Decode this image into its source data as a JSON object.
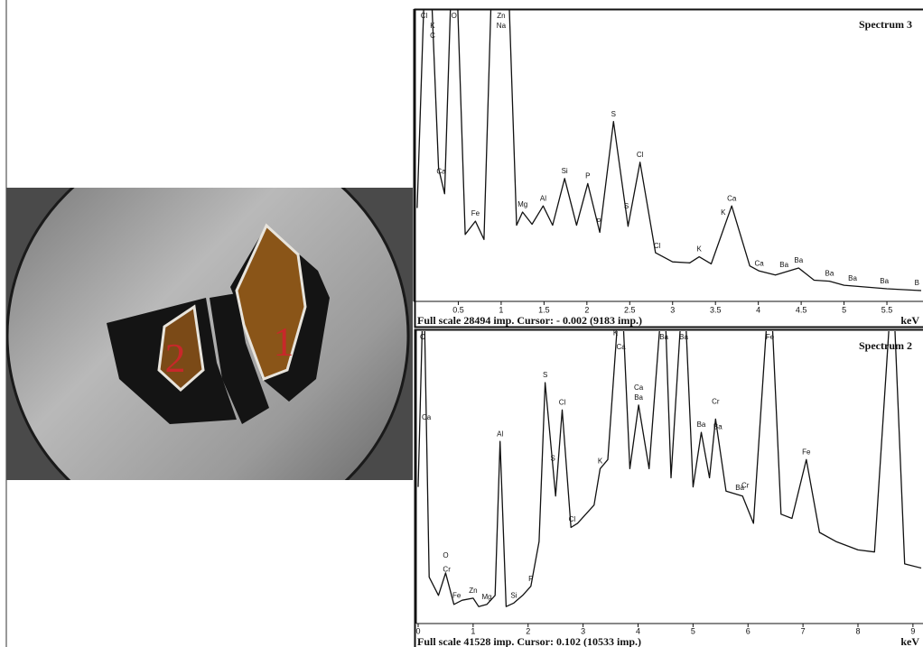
{
  "photo": {
    "labels": [
      "2",
      "1"
    ]
  },
  "chart_data": [
    {
      "type": "line",
      "title": "Spectrum 3",
      "x_label": "keV",
      "footer": "Full scale 28494 imp. Cursor: - 0.002 (9183 imp.)",
      "xlim": [
        0,
        5.9
      ],
      "ylim": [
        0,
        28494
      ],
      "xticks": [
        0.5,
        1,
        1.5,
        2,
        2.5,
        3,
        3.5,
        4,
        4.5,
        5,
        5.5
      ],
      "x": [
        0.02,
        0.14,
        0.27,
        0.34,
        0.45,
        0.58,
        0.7,
        0.8,
        0.92,
        1.05,
        1.18,
        1.25,
        1.36,
        1.49,
        1.6,
        1.74,
        1.88,
        2.01,
        2.15,
        2.31,
        2.48,
        2.62,
        2.8,
        3.0,
        3.2,
        3.31,
        3.45,
        3.69,
        3.9,
        4.01,
        4.2,
        4.47,
        4.65,
        4.83,
        5.0,
        5.5,
        5.9
      ],
      "values": [
        9100,
        40000,
        13000,
        10500,
        40000,
        6500,
        7800,
        6000,
        40000,
        40000,
        7400,
        8700,
        7500,
        9300,
        7400,
        12000,
        7400,
        11500,
        6700,
        17600,
        7300,
        13600,
        4700,
        3800,
        3700,
        4300,
        3600,
        9300,
        3400,
        2900,
        2500,
        3200,
        2000,
        1900,
        1500,
        1150,
        980
      ],
      "peak_labels": [
        {
          "text": "Cl",
          "x": 0.1
        },
        {
          "text": "K",
          "x": 0.2
        },
        {
          "text": "C",
          "x": 0.2
        },
        {
          "text": "Ca",
          "x": 0.3
        },
        {
          "text": "O",
          "x": 0.45
        },
        {
          "text": "Zn",
          "x": 1.0
        },
        {
          "text": "Na",
          "x": 1.0
        },
        {
          "text": "Fe",
          "x": 0.7
        },
        {
          "text": "Mg",
          "x": 1.25
        },
        {
          "text": "Al",
          "x": 1.49
        },
        {
          "text": "Si",
          "x": 1.74
        },
        {
          "text": "P",
          "x": 2.01
        },
        {
          "text": "P",
          "x": 2.14
        },
        {
          "text": "S",
          "x": 2.31
        },
        {
          "text": "S",
          "x": 2.46
        },
        {
          "text": "Cl",
          "x": 2.62
        },
        {
          "text": "Cl",
          "x": 2.82
        },
        {
          "text": "K",
          "x": 3.31
        },
        {
          "text": "K",
          "x": 3.59
        },
        {
          "text": "Ca",
          "x": 3.69
        },
        {
          "text": "Ca",
          "x": 4.01
        },
        {
          "text": "Ba",
          "x": 4.3
        },
        {
          "text": "Ba",
          "x": 4.47
        },
        {
          "text": "Ba",
          "x": 4.83
        },
        {
          "text": "Ba",
          "x": 5.1
        },
        {
          "text": "Ba",
          "x": 5.47
        },
        {
          "text": "B",
          "x": 5.85
        }
      ]
    },
    {
      "type": "line",
      "title": "Spectrum 2",
      "x_label": "keV",
      "footer": "Full scale 41528 imp. Cursor: 0.102 (10533 imp.)",
      "xlim": [
        0,
        9.15
      ],
      "ylim": [
        0,
        41528
      ],
      "xticks": [
        0,
        1,
        2,
        3,
        4,
        5,
        6,
        7,
        8,
        9
      ],
      "x": [
        0.0,
        0.1,
        0.2,
        0.37,
        0.5,
        0.65,
        0.8,
        1.0,
        1.1,
        1.25,
        1.4,
        1.49,
        1.6,
        1.74,
        1.9,
        2.05,
        2.2,
        2.31,
        2.5,
        2.62,
        2.78,
        2.9,
        3.2,
        3.31,
        3.45,
        3.69,
        3.85,
        4.01,
        4.2,
        4.47,
        4.6,
        4.83,
        5.0,
        5.15,
        5.3,
        5.41,
        5.6,
        5.9,
        6.1,
        6.4,
        6.6,
        6.8,
        7.06,
        7.3,
        7.6,
        8.0,
        8.3,
        8.63,
        8.85,
        9.15
      ],
      "values": [
        19400,
        50000,
        6500,
        3900,
        7100,
        2600,
        3200,
        3500,
        2300,
        2600,
        3900,
        25900,
        2300,
        2800,
        3900,
        5200,
        11600,
        34300,
        18100,
        30400,
        13600,
        14200,
        16800,
        22000,
        23300,
        50000,
        22000,
        31100,
        22000,
        50000,
        20700,
        50000,
        19400,
        27200,
        20700,
        29100,
        18800,
        18100,
        14200,
        50000,
        15500,
        14900,
        23300,
        12900,
        11600,
        10400,
        10100,
        50000,
        8400,
        7800
      ],
      "peak_labels": [
        {
          "text": "C",
          "x": 0.08
        },
        {
          "text": "Ca",
          "x": 0.15
        },
        {
          "text": "O",
          "x": 0.5
        },
        {
          "text": "Cr",
          "x": 0.52
        },
        {
          "text": "Fe",
          "x": 0.7
        },
        {
          "text": "Zn",
          "x": 1.0
        },
        {
          "text": "Mg",
          "x": 1.25
        },
        {
          "text": "Al",
          "x": 1.49
        },
        {
          "text": "Si",
          "x": 1.74
        },
        {
          "text": "P",
          "x": 2.05
        },
        {
          "text": "S",
          "x": 2.31
        },
        {
          "text": "S",
          "x": 2.45
        },
        {
          "text": "Cl",
          "x": 2.62
        },
        {
          "text": "Cl",
          "x": 2.8
        },
        {
          "text": "K",
          "x": 3.31
        },
        {
          "text": "K",
          "x": 3.59
        },
        {
          "text": "Ca",
          "x": 3.69
        },
        {
          "text": "Ca",
          "x": 4.01
        },
        {
          "text": "Ba",
          "x": 4.01
        },
        {
          "text": "Ba",
          "x": 4.47
        },
        {
          "text": "Ba",
          "x": 4.83
        },
        {
          "text": "Ba",
          "x": 5.15
        },
        {
          "text": "Cr",
          "x": 5.41
        },
        {
          "text": "Ba",
          "x": 5.45
        },
        {
          "text": "Cr",
          "x": 5.95
        },
        {
          "text": "Ba",
          "x": 5.85
        },
        {
          "text": "Fe",
          "x": 6.4
        },
        {
          "text": "Fe",
          "x": 7.06
        }
      ]
    }
  ]
}
